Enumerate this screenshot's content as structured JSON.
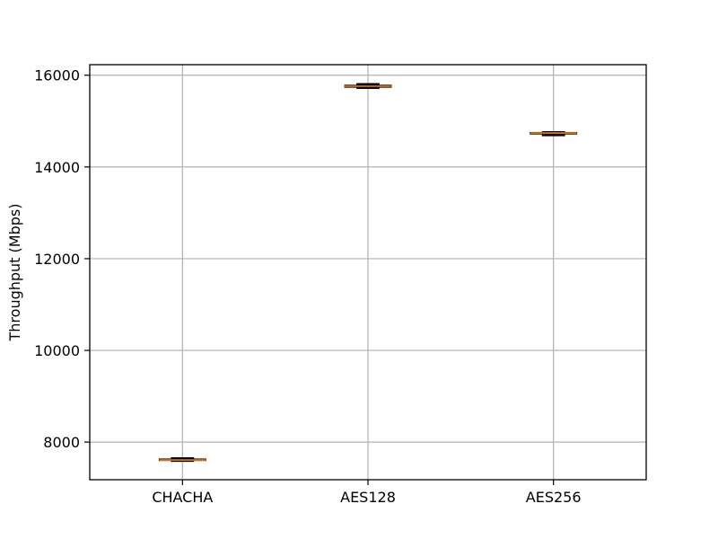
{
  "chart_data": {
    "type": "box",
    "title": "",
    "xlabel": "",
    "ylabel": "Throughput (Mbps)",
    "ylim": [
      7180,
      16230
    ],
    "yticks": [
      8000,
      10000,
      12000,
      14000,
      16000
    ],
    "grid": true,
    "categories": [
      "CHACHA",
      "AES128",
      "AES256"
    ],
    "boxes": [
      {
        "category": "CHACHA",
        "whislo": 7590,
        "q1": 7600,
        "median": 7610,
        "q3": 7630,
        "whishi": 7650
      },
      {
        "category": "AES128",
        "whislo": 15720,
        "q1": 15740,
        "median": 15760,
        "q3": 15780,
        "whishi": 15810
      },
      {
        "category": "AES256",
        "whislo": 14690,
        "q1": 14720,
        "median": 14740,
        "q3": 14750,
        "whishi": 14760
      }
    ],
    "colors": {
      "box": "#000000",
      "median": "#ff7f0e",
      "grid": "#b0b0b0"
    }
  }
}
